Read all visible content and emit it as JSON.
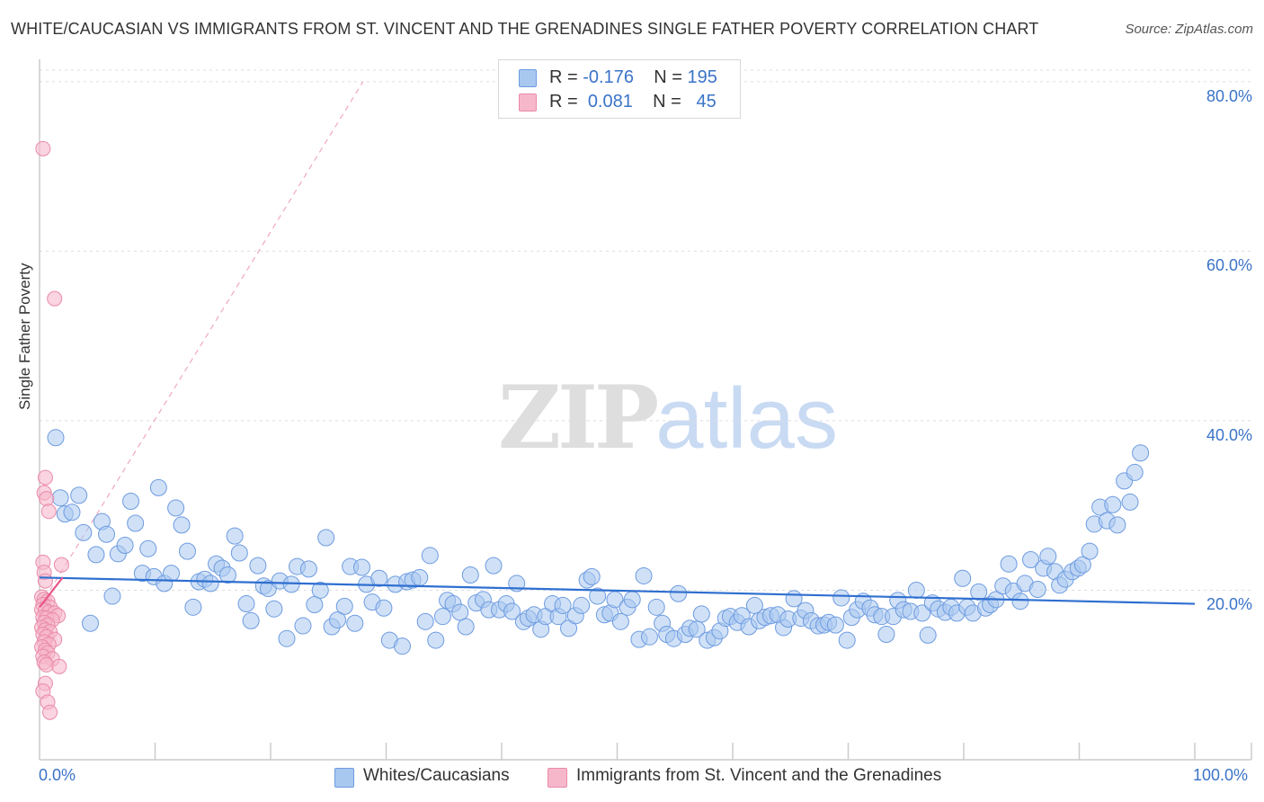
{
  "title": "WHITE/CAUCASIAN VS IMMIGRANTS FROM ST. VINCENT AND THE GRENADINES SINGLE FATHER POVERTY CORRELATION CHART",
  "source": "Source: ZipAtlas.com",
  "watermark": {
    "zip": "ZIP",
    "atlas": "atlas"
  },
  "legend": {
    "rows": [
      {
        "r_label": "R = ",
        "r_value": "-0.176",
        "n_label": "N = ",
        "n_value": "195",
        "color": "#a9c8f0"
      },
      {
        "r_label": "R = ",
        "r_value": "0.081",
        "n_label": "N = ",
        "n_value": "45",
        "color": "#f7b7cb"
      }
    ]
  },
  "colors": {
    "blue_fill": "#a9c8f0",
    "blue_stroke": "#6d9be0",
    "blue_line": "#2f6fd0",
    "pink_fill": "#f7b7cb",
    "pink_stroke": "#e98aa8",
    "pink_line": "#e8588a",
    "grid": "#dddddd",
    "axis": "#cccccc",
    "tick_label": "#3a73c8"
  },
  "chart_data": {
    "type": "scatter",
    "title": "WHITE/CAUCASIAN VS IMMIGRANTS FROM ST. VINCENT AND THE GRENADINES SINGLE FATHER POVERTY CORRELATION CHART",
    "xlabel": "",
    "ylabel": "Single Father Poverty",
    "xlim": [
      0,
      100
    ],
    "ylim": [
      0,
      82
    ],
    "x_tick_labels": [
      "0.0%",
      "100.0%"
    ],
    "y_tick_values": [
      20,
      40,
      60,
      80
    ],
    "y_tick_labels": [
      "20.0%",
      "40.0%",
      "60.0%",
      "80.0%"
    ],
    "grid": true,
    "legend_position": "top-center",
    "series": [
      {
        "name": "Whites/Caucasians",
        "R": -0.176,
        "N": 195,
        "trend": {
          "x": [
            0,
            100
          ],
          "y": [
            21.5,
            18.4
          ]
        },
        "points": [
          [
            1.4,
            38.0
          ],
          [
            1.8,
            30.9
          ],
          [
            2.2,
            29.0
          ],
          [
            2.8,
            29.2
          ],
          [
            3.4,
            31.2
          ],
          [
            3.8,
            26.8
          ],
          [
            4.4,
            16.1
          ],
          [
            4.9,
            24.2
          ],
          [
            5.4,
            28.1
          ],
          [
            5.8,
            26.6
          ],
          [
            6.3,
            19.3
          ],
          [
            6.8,
            24.3
          ],
          [
            7.4,
            25.3
          ],
          [
            7.9,
            30.5
          ],
          [
            8.3,
            27.9
          ],
          [
            8.9,
            22.0
          ],
          [
            9.4,
            24.9
          ],
          [
            9.9,
            21.6
          ],
          [
            10.3,
            32.1
          ],
          [
            10.8,
            20.8
          ],
          [
            11.4,
            22.0
          ],
          [
            11.8,
            29.7
          ],
          [
            12.3,
            27.7
          ],
          [
            12.8,
            24.6
          ],
          [
            13.3,
            18.0
          ],
          [
            13.8,
            21.0
          ],
          [
            14.3,
            21.3
          ],
          [
            14.8,
            20.8
          ],
          [
            15.3,
            23.1
          ],
          [
            15.8,
            22.6
          ],
          [
            16.3,
            21.8
          ],
          [
            16.9,
            26.4
          ],
          [
            17.3,
            24.4
          ],
          [
            17.9,
            18.4
          ],
          [
            18.3,
            16.4
          ],
          [
            18.9,
            22.9
          ],
          [
            19.4,
            20.5
          ],
          [
            19.8,
            20.2
          ],
          [
            20.3,
            17.8
          ],
          [
            20.8,
            21.1
          ],
          [
            21.4,
            14.3
          ],
          [
            21.8,
            20.7
          ],
          [
            22.3,
            22.8
          ],
          [
            22.8,
            15.8
          ],
          [
            23.3,
            22.5
          ],
          [
            23.8,
            18.3
          ],
          [
            24.3,
            20.0
          ],
          [
            24.8,
            26.2
          ],
          [
            25.3,
            15.7
          ],
          [
            25.8,
            16.5
          ],
          [
            26.4,
            18.1
          ],
          [
            26.9,
            22.8
          ],
          [
            27.3,
            16.1
          ],
          [
            27.9,
            22.7
          ],
          [
            28.3,
            20.7
          ],
          [
            28.8,
            18.6
          ],
          [
            29.4,
            21.4
          ],
          [
            29.8,
            17.9
          ],
          [
            30.3,
            14.1
          ],
          [
            30.8,
            20.7
          ],
          [
            31.4,
            13.4
          ],
          [
            31.8,
            21.0
          ],
          [
            32.3,
            21.2
          ],
          [
            32.9,
            21.5
          ],
          [
            33.4,
            16.3
          ],
          [
            33.8,
            24.1
          ],
          [
            34.3,
            14.1
          ],
          [
            34.9,
            16.9
          ],
          [
            35.3,
            18.8
          ],
          [
            35.8,
            18.4
          ],
          [
            36.4,
            17.4
          ],
          [
            36.9,
            15.7
          ],
          [
            37.3,
            21.8
          ],
          [
            37.8,
            18.5
          ],
          [
            38.4,
            18.9
          ],
          [
            38.9,
            17.7
          ],
          [
            39.3,
            22.9
          ],
          [
            39.8,
            17.7
          ],
          [
            40.4,
            18.4
          ],
          [
            40.9,
            17.5
          ],
          [
            41.3,
            20.8
          ],
          [
            41.9,
            16.3
          ],
          [
            42.3,
            16.7
          ],
          [
            42.8,
            17.1
          ],
          [
            43.4,
            15.4
          ],
          [
            43.8,
            16.9
          ],
          [
            44.4,
            18.4
          ],
          [
            44.9,
            16.9
          ],
          [
            45.3,
            18.2
          ],
          [
            45.8,
            15.5
          ],
          [
            46.4,
            17.0
          ],
          [
            46.9,
            18.2
          ],
          [
            47.4,
            21.2
          ],
          [
            47.8,
            21.6
          ],
          [
            48.3,
            19.3
          ],
          [
            48.9,
            17.1
          ],
          [
            49.4,
            17.3
          ],
          [
            49.8,
            18.9
          ],
          [
            50.3,
            16.3
          ],
          [
            50.9,
            18.0
          ],
          [
            51.3,
            18.9
          ],
          [
            51.9,
            14.2
          ],
          [
            52.3,
            21.7
          ],
          [
            52.8,
            14.5
          ],
          [
            53.4,
            18.0
          ],
          [
            53.9,
            16.1
          ],
          [
            54.3,
            14.8
          ],
          [
            54.9,
            14.3
          ],
          [
            55.3,
            19.6
          ],
          [
            55.9,
            14.8
          ],
          [
            56.3,
            15.5
          ],
          [
            56.9,
            15.4
          ],
          [
            57.3,
            17.2
          ],
          [
            57.8,
            14.1
          ],
          [
            58.4,
            14.4
          ],
          [
            58.9,
            15.2
          ],
          [
            59.4,
            16.7
          ],
          [
            59.8,
            16.9
          ],
          [
            60.4,
            16.2
          ],
          [
            60.8,
            17.0
          ],
          [
            61.4,
            15.7
          ],
          [
            61.9,
            18.2
          ],
          [
            62.3,
            16.4
          ],
          [
            62.8,
            16.8
          ],
          [
            63.3,
            17.0
          ],
          [
            63.9,
            17.1
          ],
          [
            64.4,
            15.6
          ],
          [
            64.8,
            16.6
          ],
          [
            65.3,
            19.0
          ],
          [
            65.9,
            16.7
          ],
          [
            66.3,
            17.6
          ],
          [
            66.8,
            16.4
          ],
          [
            67.4,
            15.8
          ],
          [
            67.9,
            15.9
          ],
          [
            68.3,
            16.2
          ],
          [
            68.9,
            15.9
          ],
          [
            69.4,
            19.1
          ],
          [
            69.9,
            14.1
          ],
          [
            70.3,
            16.8
          ],
          [
            70.8,
            17.7
          ],
          [
            71.3,
            18.7
          ],
          [
            71.9,
            17.9
          ],
          [
            72.3,
            17.1
          ],
          [
            72.9,
            16.9
          ],
          [
            73.3,
            14.8
          ],
          [
            73.9,
            16.9
          ],
          [
            74.3,
            18.8
          ],
          [
            74.8,
            17.7
          ],
          [
            75.4,
            17.5
          ],
          [
            75.9,
            20.0
          ],
          [
            76.4,
            17.3
          ],
          [
            76.9,
            14.7
          ],
          [
            77.3,
            18.5
          ],
          [
            77.8,
            17.8
          ],
          [
            78.4,
            17.4
          ],
          [
            78.9,
            18.0
          ],
          [
            79.4,
            17.3
          ],
          [
            79.9,
            21.4
          ],
          [
            80.3,
            18.0
          ],
          [
            80.8,
            17.3
          ],
          [
            81.3,
            19.8
          ],
          [
            81.9,
            17.9
          ],
          [
            82.3,
            18.3
          ],
          [
            82.8,
            18.9
          ],
          [
            83.4,
            20.5
          ],
          [
            83.9,
            23.1
          ],
          [
            84.3,
            19.9
          ],
          [
            84.9,
            18.7
          ],
          [
            85.3,
            20.8
          ],
          [
            85.8,
            23.6
          ],
          [
            86.4,
            20.1
          ],
          [
            86.9,
            22.6
          ],
          [
            87.3,
            24.0
          ],
          [
            87.9,
            22.2
          ],
          [
            88.3,
            20.6
          ],
          [
            88.8,
            21.3
          ],
          [
            89.4,
            22.2
          ],
          [
            89.9,
            22.6
          ],
          [
            90.3,
            23.0
          ],
          [
            90.9,
            24.6
          ],
          [
            91.3,
            27.8
          ],
          [
            91.8,
            29.8
          ],
          [
            92.4,
            28.2
          ],
          [
            92.9,
            30.1
          ],
          [
            93.3,
            27.7
          ],
          [
            93.9,
            32.9
          ],
          [
            94.4,
            30.4
          ],
          [
            94.8,
            33.9
          ],
          [
            95.3,
            36.2
          ]
        ]
      },
      {
        "name": "Immigrants from St. Vincent and the Grenadines",
        "R": 0.081,
        "N": 45,
        "trend": {
          "x": [
            0,
            2.0
          ],
          "y": [
            18.0,
            21.5
          ]
        },
        "trend_extended": {
          "x": [
            0,
            28
          ],
          "y": [
            18.0,
            80.0
          ]
        },
        "points": [
          [
            0.3,
            72.1
          ],
          [
            1.3,
            54.4
          ],
          [
            0.5,
            33.3
          ],
          [
            0.4,
            31.5
          ],
          [
            0.6,
            30.8
          ],
          [
            0.8,
            29.3
          ],
          [
            0.3,
            23.3
          ],
          [
            1.9,
            23.0
          ],
          [
            0.4,
            22.1
          ],
          [
            0.5,
            21.1
          ],
          [
            0.2,
            19.2
          ],
          [
            0.4,
            18.9
          ],
          [
            0.7,
            18.7
          ],
          [
            0.3,
            18.3
          ],
          [
            0.9,
            18.0
          ],
          [
            0.2,
            17.7
          ],
          [
            0.5,
            17.6
          ],
          [
            0.8,
            17.4
          ],
          [
            1.3,
            17.3
          ],
          [
            1.6,
            17.0
          ],
          [
            0.3,
            16.8
          ],
          [
            0.6,
            16.7
          ],
          [
            1.1,
            16.5
          ],
          [
            0.4,
            16.2
          ],
          [
            0.7,
            15.9
          ],
          [
            0.2,
            15.6
          ],
          [
            0.5,
            15.3
          ],
          [
            0.9,
            15.1
          ],
          [
            0.3,
            14.8
          ],
          [
            0.6,
            14.5
          ],
          [
            1.3,
            14.2
          ],
          [
            0.4,
            13.9
          ],
          [
            0.8,
            13.6
          ],
          [
            0.2,
            13.3
          ],
          [
            0.5,
            12.9
          ],
          [
            0.7,
            12.6
          ],
          [
            0.3,
            12.2
          ],
          [
            1.1,
            11.9
          ],
          [
            0.4,
            11.5
          ],
          [
            0.6,
            11.2
          ],
          [
            1.7,
            11.0
          ],
          [
            0.5,
            9.0
          ],
          [
            0.3,
            8.1
          ],
          [
            0.7,
            6.8
          ],
          [
            0.9,
            5.6
          ]
        ]
      }
    ]
  },
  "bottom_legend": [
    {
      "label": "Whites/Caucasians",
      "color": "#a9c8f0"
    },
    {
      "label": "Immigrants from St. Vincent and the Grenadines",
      "color": "#f7b7cb"
    }
  ]
}
